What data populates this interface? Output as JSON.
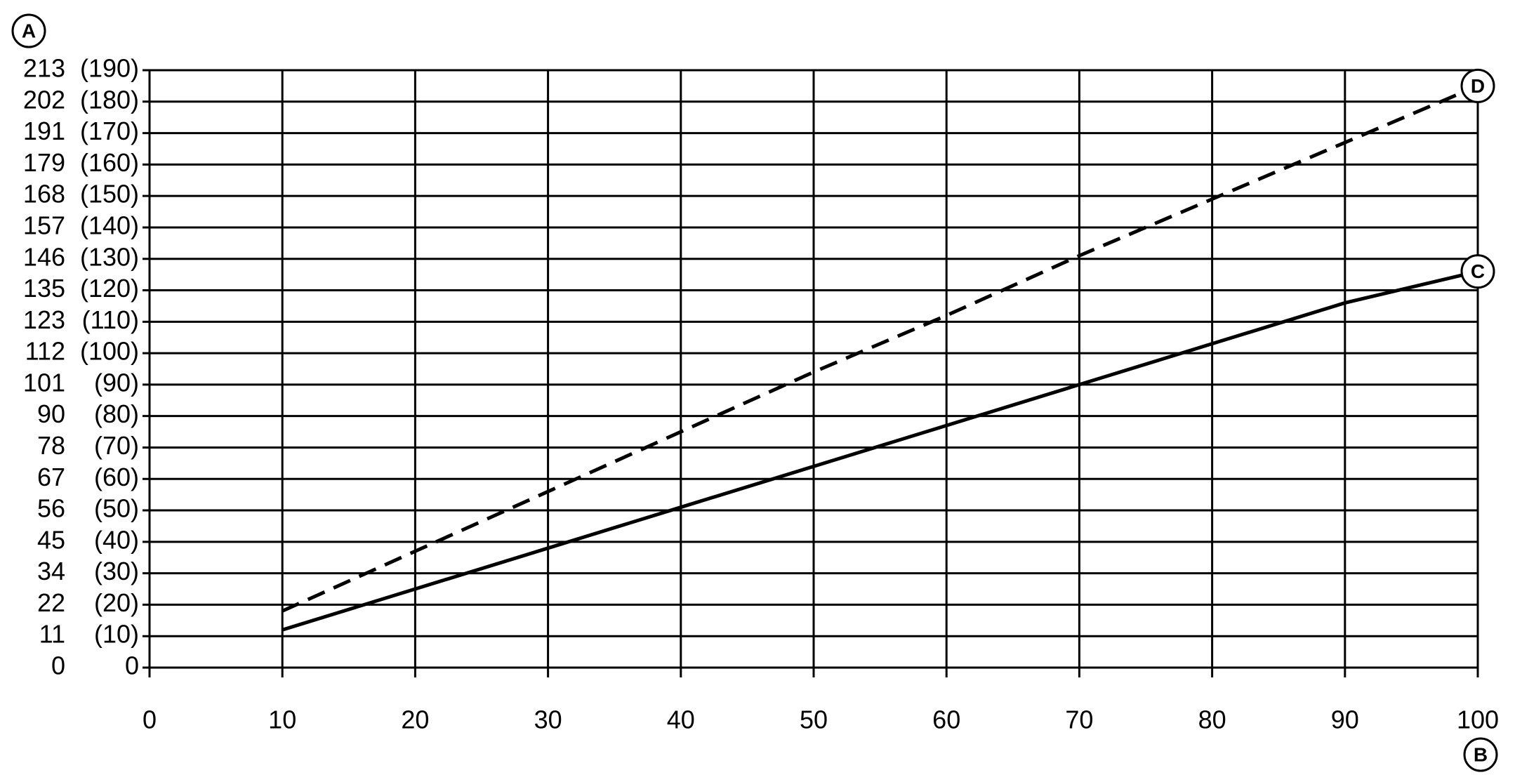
{
  "chart_data": {
    "type": "line",
    "y_label": "A",
    "x_label": "B",
    "x": [
      10,
      20,
      30,
      40,
      50,
      60,
      70,
      80,
      90,
      100
    ],
    "series": [
      {
        "name": "C",
        "color": "#000000",
        "dash": "solid",
        "values": [
          12,
          25,
          38,
          51,
          64,
          77,
          90,
          103,
          116,
          126
        ]
      },
      {
        "name": "D",
        "color": "#000000",
        "dash": "dashed",
        "values": [
          18,
          37,
          56,
          75,
          94,
          112,
          131,
          149,
          167,
          185
        ]
      }
    ],
    "xlim": [
      0,
      100
    ],
    "xticks": [
      0,
      10,
      20,
      30,
      40,
      50,
      60,
      70,
      80,
      90,
      100
    ],
    "ylim": [
      0,
      190
    ],
    "yticks": [
      0,
      {
        "value": 10,
        "label": "(10)"
      },
      {
        "value": 20,
        "label": "(20)"
      },
      {
        "value": 30,
        "label": "(30)"
      },
      {
        "value": 40,
        "label": "(40)"
      },
      {
        "value": 50,
        "label": "(50)"
      },
      {
        "value": 60,
        "label": "(60)"
      },
      {
        "value": 70,
        "label": "(70)"
      },
      {
        "value": 80,
        "label": "(80)"
      },
      {
        "value": 90,
        "label": "(90)"
      },
      {
        "value": 100,
        "label": "(100)"
      },
      {
        "value": 110,
        "label": "(110)"
      },
      {
        "value": 120,
        "label": "(120)"
      },
      {
        "value": 130,
        "label": "(130)"
      },
      {
        "value": 140,
        "label": "(140)"
      },
      {
        "value": 150,
        "label": "(150)"
      },
      {
        "value": 160,
        "label": "(160)"
      },
      {
        "value": 170,
        "label": "(170)"
      },
      {
        "value": 180,
        "label": "(180)"
      },
      {
        "value": 190,
        "label": "(190)"
      }
    ],
    "ytick_alt_labels": [
      "0",
      "11",
      "22",
      "34",
      "45",
      "56",
      "67",
      "78",
      "90",
      "101",
      "112",
      "123",
      "135",
      "146",
      "157",
      "168",
      "179",
      "191",
      "202",
      "213"
    ],
    "grid": true
  }
}
